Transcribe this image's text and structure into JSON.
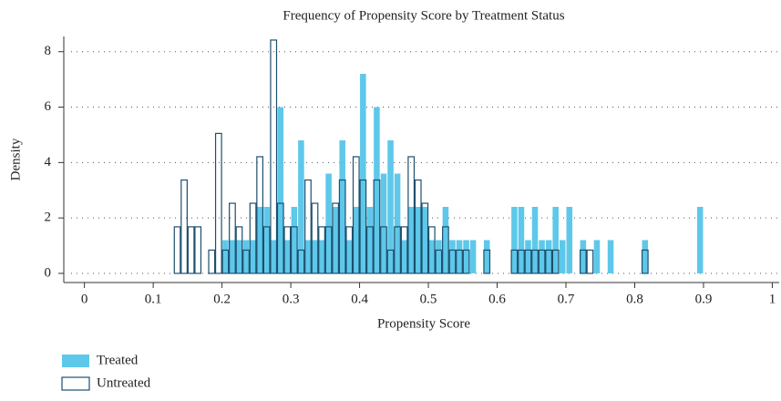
{
  "chart_data": {
    "type": "histogram",
    "title": "Frequency of Propensity Score by Treatment Status",
    "xlabel": "Propensity Score",
    "ylabel": "Density",
    "bins": [
      0.13,
      0.14,
      0.15,
      0.16,
      0.17,
      0.18,
      0.19,
      0.2,
      0.21,
      0.22,
      0.23,
      0.24,
      0.25,
      0.26,
      0.27,
      0.28,
      0.29,
      0.3,
      0.31,
      0.32,
      0.33,
      0.34,
      0.35,
      0.36,
      0.37,
      0.38,
      0.39,
      0.4,
      0.41,
      0.42,
      0.43,
      0.44,
      0.45,
      0.46,
      0.47,
      0.48,
      0.49,
      0.5,
      0.51,
      0.52,
      0.53,
      0.54,
      0.55,
      0.56,
      0.57,
      0.58,
      0.59,
      0.6,
      0.61,
      0.62,
      0.63,
      0.64,
      0.65,
      0.66,
      0.67,
      0.68,
      0.69,
      0.7,
      0.71,
      0.72,
      0.73,
      0.74,
      0.75,
      0.76,
      0.77,
      0.78,
      0.79,
      0.8,
      0.81,
      0.82,
      0.83,
      0.84,
      0.85,
      0.86,
      0.87,
      0.88,
      0.89,
      0.9,
      0.91
    ],
    "series": [
      {
        "name": "Treated",
        "color": "#5ec8ea",
        "style": "filled",
        "values": [
          0,
          0,
          0,
          0,
          0,
          0,
          0,
          1.2,
          1.2,
          1.2,
          1.2,
          1.2,
          2.4,
          2.4,
          1.2,
          6.0,
          1.2,
          2.4,
          4.8,
          1.2,
          1.2,
          1.2,
          3.6,
          2.4,
          4.8,
          1.2,
          2.4,
          7.2,
          2.4,
          6.0,
          3.6,
          4.8,
          3.6,
          1.2,
          2.4,
          2.4,
          2.4,
          1.2,
          1.2,
          2.4,
          1.2,
          1.2,
          1.2,
          1.2,
          0,
          1.2,
          0,
          0,
          0,
          2.4,
          2.4,
          1.2,
          2.4,
          1.2,
          1.2,
          2.4,
          1.2,
          2.4,
          0,
          1.2,
          0,
          1.2,
          0,
          1.2,
          0,
          0,
          0,
          0,
          1.2,
          0,
          0,
          0,
          0,
          0,
          0,
          0,
          2.4,
          0
        ]
      },
      {
        "name": "Untreated",
        "color": "#1d4f6e",
        "style": "outline",
        "values": [
          1.68,
          3.37,
          1.68,
          1.68,
          0,
          0.84,
          5.05,
          0.84,
          2.53,
          1.68,
          0.84,
          2.53,
          4.21,
          1.68,
          8.42,
          2.53,
          1.68,
          1.68,
          0.84,
          3.37,
          2.53,
          1.68,
          1.68,
          2.53,
          3.37,
          1.68,
          4.21,
          3.37,
          1.68,
          3.37,
          1.68,
          0.84,
          1.68,
          1.68,
          4.21,
          3.37,
          2.53,
          1.68,
          0.84,
          1.68,
          0.84,
          0.84,
          0.84,
          0,
          0,
          0.84,
          0,
          0,
          0,
          0.84,
          0.84,
          0.84,
          0.84,
          0.84,
          0.84,
          0.84,
          0,
          0,
          0,
          0.84,
          0.84,
          0,
          0,
          0,
          0,
          0,
          0,
          0,
          0.84,
          0,
          0,
          0,
          0,
          0,
          0,
          0,
          0,
          0
        ]
      }
    ],
    "xlim": [
      -0.03,
      1.01
    ],
    "ylim": [
      -0.33,
      8.55
    ],
    "xticks": [
      0,
      0.1,
      0.2,
      0.3,
      0.4,
      0.5,
      0.6,
      0.7,
      0.8,
      0.9,
      1
    ],
    "yticks": [
      0,
      2,
      4,
      6,
      8
    ],
    "grid": true,
    "legend": "bottom-left"
  }
}
